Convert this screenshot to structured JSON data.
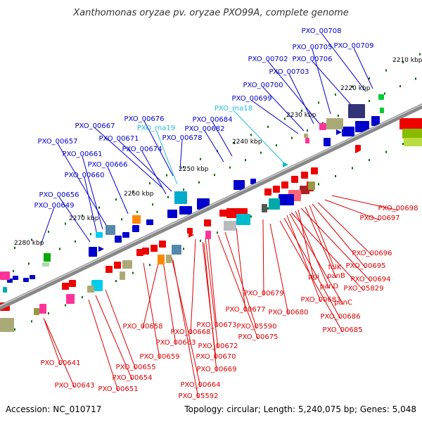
{
  "title": "Xanthomonas oryzae pv. oryzae PXO99A, complete genome",
  "footer": {
    "accession": "Accession: NC_010717",
    "summary": "Topology: circular; Length: 5,240,075 bp; Genes: 5,048"
  },
  "colors": {
    "forward_label": "#0000cc",
    "reverse_label": "#dd0000",
    "rna_label": "#22bbdd",
    "backbone": "#888888",
    "tick": "#006600"
  },
  "ticks": [
    "2210 kbp",
    "2220 kbp",
    "2230 kbp",
    "2240 kbp",
    "2250 kbp",
    "2260 kbp",
    "2270 kbp",
    "2280 kbp"
  ],
  "forward_labels": [
    "PXO_00708",
    "PXO_00709",
    "PXO_00705",
    "PXO_00702",
    "PXO_00706",
    "PXO_00703",
    "PXO_00700",
    "PXO_00699",
    "PXO_00684",
    "PXO_00682",
    "PXO_00676",
    "PXO_00667",
    "PXO_00671",
    "PXO_00678",
    "PXO_00674",
    "PXO_00657",
    "PXO_00661",
    "PXO_00666",
    "PXO_00660",
    "PXO_00656",
    "PXO_00649"
  ],
  "rna_labels": [
    "PXO_rna18",
    "PXO_rna19"
  ],
  "reverse_labels": [
    "PXO_00698",
    "PXO_00697",
    "PXO_00696",
    "PXO_00695",
    "folK",
    "panB",
    "PXO_00694",
    "pgi",
    "panD",
    "PXO_05829",
    "panC",
    "PXO_00683",
    "PXO_00679",
    "PXO_00686",
    "PXO_00680",
    "PXO_00677",
    "PXO_00685",
    "PXO_05590",
    "PXO_00673",
    "PXO_00675",
    "PXO_00668",
    "PXO_00658",
    "PXO_00672",
    "PXO_00663",
    "PXO_00670",
    "PXO_00659",
    "PXO_00669",
    "PXO_00641",
    "PXO_00655",
    "PXO_00654",
    "PXO_00664",
    "PXO_00643",
    "PXO_00651",
    "PXO_05592"
  ]
}
